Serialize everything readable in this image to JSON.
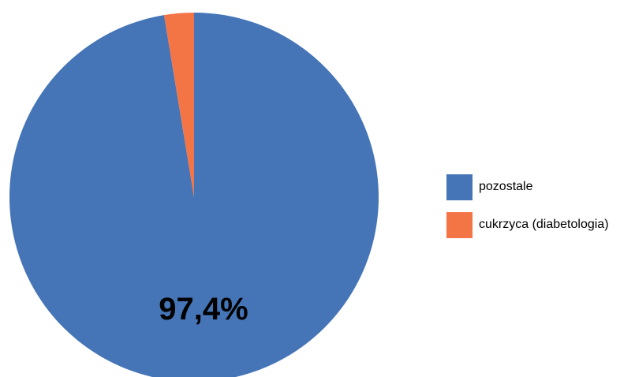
{
  "chart_data": {
    "type": "pie",
    "categories": [
      "pozostale",
      "cukrzyca (diabetologia)"
    ],
    "values": [
      97.4,
      2.6
    ],
    "colors": [
      "#4575b7",
      "#f37445"
    ],
    "data_labels": [
      "97,4%",
      ""
    ],
    "legend": {
      "placement": "right",
      "entries": [
        "pozostale",
        "cukrzyca (diabetologia)"
      ]
    }
  }
}
